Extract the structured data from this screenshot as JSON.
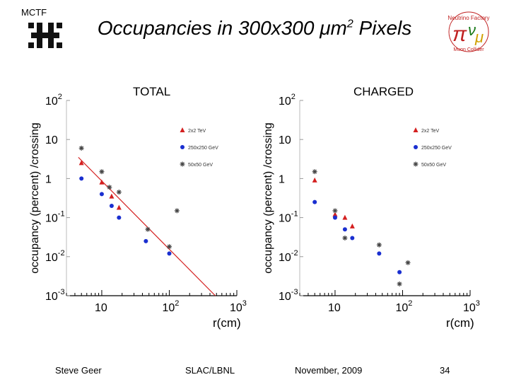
{
  "header": {
    "org_label": "MCTF",
    "title_prefix": "Occupancies in 300x300 ",
    "title_mu": "μ",
    "title_m": "m",
    "title_sup": "2",
    "title_suffix": " Pixels"
  },
  "footer": {
    "author": "Steve Geer",
    "affiliation": "SLAC/LBNL",
    "date": "November, 2009",
    "page": "34"
  },
  "colors": {
    "red": "#d42020",
    "blue": "#1a2fd0",
    "gray": "#444444"
  },
  "chart_data": [
    {
      "type": "scatter",
      "title": "TOTAL",
      "xlabel": "r(cm)",
      "ylabel": "occupancy (percent) /crossing",
      "x_scale": "log",
      "y_scale": "log",
      "xlim": [
        3,
        1000
      ],
      "ylim": [
        0.001,
        100
      ],
      "x_ticks": [
        {
          "value": 10,
          "base": "10",
          "exp": ""
        },
        {
          "value": 100,
          "base": "10",
          "exp": "2"
        },
        {
          "value": 1000,
          "base": "10",
          "exp": "3"
        }
      ],
      "y_ticks": [
        {
          "value": 100,
          "base": "10",
          "exp": "2"
        },
        {
          "value": 10,
          "base": "10",
          "exp": ""
        },
        {
          "value": 1,
          "base": "1",
          "exp": ""
        },
        {
          "value": 0.1,
          "base": "10",
          "exp": "-1"
        },
        {
          "value": 0.01,
          "base": "10",
          "exp": "-2"
        },
        {
          "value": 0.001,
          "base": "10",
          "exp": "-3"
        }
      ],
      "legend_position": "top-right",
      "series": [
        {
          "name": "2x2 TeV",
          "marker": "triangle",
          "color": "#d42020",
          "x": [
            5,
            10,
            14,
            18
          ],
          "y": [
            2.5,
            0.8,
            0.35,
            0.18
          ]
        },
        {
          "name": "250x250 GeV",
          "marker": "circle",
          "color": "#1a2fd0",
          "x": [
            5,
            10,
            14,
            18,
            45,
            100
          ],
          "y": [
            1.0,
            0.4,
            0.2,
            0.1,
            0.025,
            0.012
          ]
        },
        {
          "name": "50x50 GeV",
          "marker": "asterisk",
          "color": "#444444",
          "x": [
            5,
            10,
            13,
            18,
            48,
            100,
            130
          ],
          "y": [
            6.0,
            1.5,
            0.6,
            0.45,
            0.05,
            0.018,
            0.15
          ]
        }
      ],
      "fit_line": {
        "color": "#d42020",
        "x": [
          4.5,
          480
        ],
        "y": [
          3.5,
          0.001
        ]
      }
    },
    {
      "type": "scatter",
      "title": "CHARGED",
      "xlabel": "r(cm)",
      "ylabel": "occupancy (percent) /crossing",
      "x_scale": "log",
      "y_scale": "log",
      "xlim": [
        3,
        1000
      ],
      "ylim": [
        0.001,
        100
      ],
      "x_ticks": [
        {
          "value": 10,
          "base": "10",
          "exp": ""
        },
        {
          "value": 100,
          "base": "10",
          "exp": "2"
        },
        {
          "value": 1000,
          "base": "10",
          "exp": "3"
        }
      ],
      "y_ticks": [
        {
          "value": 100,
          "base": "10",
          "exp": "2"
        },
        {
          "value": 10,
          "base": "10",
          "exp": ""
        },
        {
          "value": 1,
          "base": "1",
          "exp": ""
        },
        {
          "value": 0.1,
          "base": "10",
          "exp": "-1"
        },
        {
          "value": 0.01,
          "base": "10",
          "exp": "-2"
        },
        {
          "value": 0.001,
          "base": "10",
          "exp": "-3"
        }
      ],
      "legend_position": "top-right",
      "series": [
        {
          "name": "2x2 TeV",
          "marker": "triangle",
          "color": "#d42020",
          "x": [
            5,
            10,
            14,
            18
          ],
          "y": [
            0.9,
            0.12,
            0.1,
            0.06
          ]
        },
        {
          "name": "250x250 GeV",
          "marker": "circle",
          "color": "#1a2fd0",
          "x": [
            5,
            10,
            14,
            18,
            45,
            90
          ],
          "y": [
            0.25,
            0.1,
            0.05,
            0.03,
            0.012,
            0.004
          ]
        },
        {
          "name": "50x50 GeV",
          "marker": "asterisk",
          "color": "#444444",
          "x": [
            5,
            10,
            14,
            45,
            90,
            120
          ],
          "y": [
            1.5,
            0.15,
            0.03,
            0.02,
            0.002,
            0.007
          ]
        }
      ]
    }
  ]
}
